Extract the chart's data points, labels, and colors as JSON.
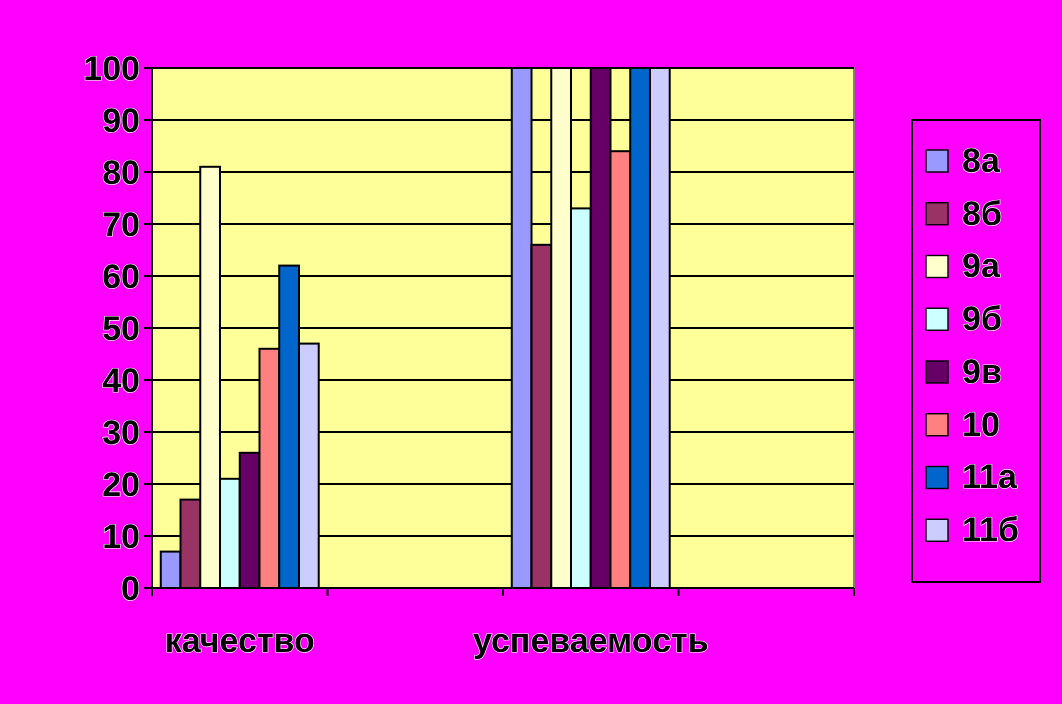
{
  "chart_data": {
    "type": "bar",
    "categories": [
      "качество",
      null,
      "успеваемость",
      null
    ],
    "series": [
      {
        "name": "8а",
        "color": "#9999ff",
        "values": [
          7,
          null,
          100,
          null
        ]
      },
      {
        "name": "8б",
        "color": "#993366",
        "values": [
          17,
          null,
          66,
          null
        ]
      },
      {
        "name": "9а",
        "color": "#ffffcc",
        "values": [
          81,
          null,
          100,
          null
        ]
      },
      {
        "name": "9б",
        "color": "#ccffff",
        "values": [
          21,
          null,
          73,
          null
        ]
      },
      {
        "name": "9в",
        "color": "#660066",
        "values": [
          26,
          null,
          100,
          null
        ]
      },
      {
        "name": "10",
        "color": "#ff8080",
        "values": [
          46,
          null,
          84,
          null
        ]
      },
      {
        "name": "11а",
        "color": "#0066cc",
        "values": [
          62,
          null,
          100,
          null
        ]
      },
      {
        "name": "11б",
        "color": "#ccccff",
        "values": [
          47,
          null,
          100,
          null
        ]
      }
    ],
    "ylim": [
      0,
      100
    ],
    "yticks": [
      0,
      10,
      20,
      30,
      40,
      50,
      60,
      70,
      80,
      90,
      100
    ],
    "grid": "y",
    "legend": "right"
  }
}
